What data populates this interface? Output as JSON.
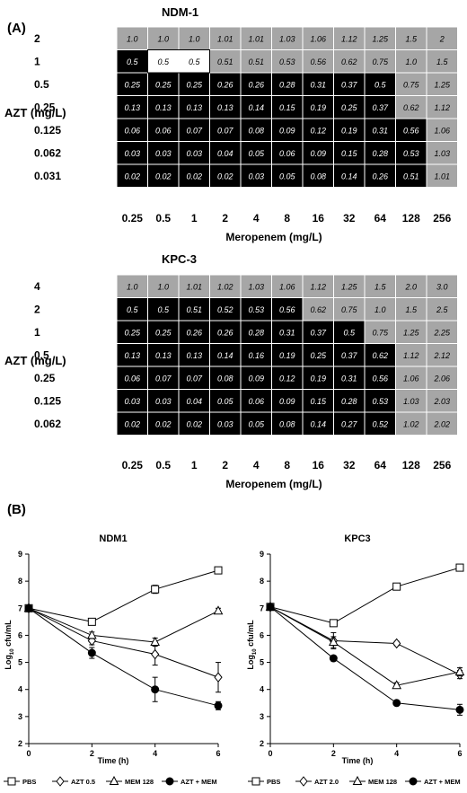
{
  "panel_a": {
    "label": "(A)",
    "grids": [
      {
        "title": "NDM-1",
        "ylabel": "AZT (mg/L)",
        "xlabel": "Meropenem (mg/L)",
        "rows": [
          "2",
          "1",
          "0.5",
          "0.25",
          "0.125",
          "0.062",
          "0.031"
        ],
        "cols": [
          "0.25",
          "0.5",
          "1",
          "2",
          "4",
          "8",
          "16",
          "32",
          "64",
          "128",
          "256"
        ],
        "values": [
          [
            "1.0",
            "1.0",
            "1.0",
            "1.01",
            "1.01",
            "1.03",
            "1.06",
            "1.12",
            "1.25",
            "1.5",
            "2"
          ],
          [
            "0.5",
            "0.5",
            "0.5",
            "0.51",
            "0.51",
            "0.53",
            "0.56",
            "0.62",
            "0.75",
            "1.0",
            "1.5"
          ],
          [
            "0.25",
            "0.25",
            "0.25",
            "0.26",
            "0.26",
            "0.28",
            "0.31",
            "0.37",
            "0.5",
            "0.75",
            "1.25"
          ],
          [
            "0.13",
            "0.13",
            "0.13",
            "0.13",
            "0.14",
            "0.15",
            "0.19",
            "0.25",
            "0.37",
            "0.62",
            "1.12"
          ],
          [
            "0.06",
            "0.06",
            "0.07",
            "0.07",
            "0.08",
            "0.09",
            "0.12",
            "0.19",
            "0.31",
            "0.56",
            "1.06"
          ],
          [
            "0.03",
            "0.03",
            "0.03",
            "0.04",
            "0.05",
            "0.06",
            "0.09",
            "0.15",
            "0.28",
            "0.53",
            "1.03"
          ],
          [
            "0.02",
            "0.02",
            "0.02",
            "0.02",
            "0.03",
            "0.05",
            "0.08",
            "0.14",
            "0.26",
            "0.51",
            "1.01"
          ]
        ],
        "shading": [
          [
            "g",
            "g",
            "g",
            "g",
            "g",
            "g",
            "g",
            "g",
            "g",
            "g",
            "g"
          ],
          [
            "k",
            "w",
            "w",
            "g",
            "g",
            "g",
            "g",
            "g",
            "g",
            "g",
            "g"
          ],
          [
            "k",
            "k",
            "k",
            "k",
            "k",
            "k",
            "k",
            "k",
            "k",
            "g",
            "g"
          ],
          [
            "k",
            "k",
            "k",
            "k",
            "k",
            "k",
            "k",
            "k",
            "k",
            "g",
            "g"
          ],
          [
            "k",
            "k",
            "k",
            "k",
            "k",
            "k",
            "k",
            "k",
            "k",
            "k",
            "g"
          ],
          [
            "k",
            "k",
            "k",
            "k",
            "k",
            "k",
            "k",
            "k",
            "k",
            "k",
            "g"
          ],
          [
            "k",
            "k",
            "k",
            "k",
            "k",
            "k",
            "k",
            "k",
            "k",
            "k",
            "g"
          ]
        ]
      },
      {
        "title": "KPC-3",
        "ylabel": "AZT (mg/L)",
        "xlabel": "Meropenem (mg/L)",
        "rows": [
          "4",
          "2",
          "1",
          "0.5",
          "0.25",
          "0.125",
          "0.062"
        ],
        "cols": [
          "0.25",
          "0.5",
          "1",
          "2",
          "4",
          "8",
          "16",
          "32",
          "64",
          "128",
          "256"
        ],
        "values": [
          [
            "1.0",
            "1.0",
            "1.01",
            "1.02",
            "1.03",
            "1.06",
            "1.12",
            "1.25",
            "1.5",
            "2.0",
            "3.0"
          ],
          [
            "0.5",
            "0.5",
            "0.51",
            "0.52",
            "0.53",
            "0.56",
            "0.62",
            "0.75",
            "1.0",
            "1.5",
            "2.5"
          ],
          [
            "0.25",
            "0.25",
            "0.26",
            "0.26",
            "0.28",
            "0.31",
            "0.37",
            "0.5",
            "0.75",
            "1.25",
            "2.25"
          ],
          [
            "0.13",
            "0.13",
            "0.13",
            "0.14",
            "0.16",
            "0.19",
            "0.25",
            "0.37",
            "0.62",
            "1.12",
            "2.12"
          ],
          [
            "0.06",
            "0.07",
            "0.07",
            "0.08",
            "0.09",
            "0.12",
            "0.19",
            "0.31",
            "0.56",
            "1.06",
            "2.06"
          ],
          [
            "0.03",
            "0.03",
            "0.04",
            "0.05",
            "0.06",
            "0.09",
            "0.15",
            "0.28",
            "0.53",
            "1.03",
            "2.03"
          ],
          [
            "0.02",
            "0.02",
            "0.02",
            "0.03",
            "0.05",
            "0.08",
            "0.14",
            "0.27",
            "0.52",
            "1.02",
            "2.02"
          ]
        ],
        "shading": [
          [
            "g",
            "g",
            "g",
            "g",
            "g",
            "g",
            "g",
            "g",
            "g",
            "g",
            "g"
          ],
          [
            "k",
            "k",
            "k",
            "k",
            "k",
            "k",
            "g",
            "g",
            "g",
            "g",
            "g"
          ],
          [
            "k",
            "k",
            "k",
            "k",
            "k",
            "k",
            "k",
            "k",
            "g",
            "g",
            "g"
          ],
          [
            "k",
            "k",
            "k",
            "k",
            "k",
            "k",
            "k",
            "k",
            "k",
            "g",
            "g"
          ],
          [
            "k",
            "k",
            "k",
            "k",
            "k",
            "k",
            "k",
            "k",
            "k",
            "g",
            "g"
          ],
          [
            "k",
            "k",
            "k",
            "k",
            "k",
            "k",
            "k",
            "k",
            "k",
            "g",
            "g"
          ],
          [
            "k",
            "k",
            "k",
            "k",
            "k",
            "k",
            "k",
            "k",
            "k",
            "g",
            "g"
          ]
        ]
      }
    ],
    "colors": {
      "g": "#a6a6a6",
      "k": "#000000",
      "w": "#ffffff",
      "grid_line": "#ffffff"
    }
  },
  "panel_b": {
    "label": "(B)",
    "charts": [
      {
        "type": "line",
        "title": "NDM1",
        "xlabel": "Time (h)",
        "ylabel_main": "Log",
        "ylabel_sub": "10",
        "ylabel_tail": " cfu/mL",
        "x": [
          0,
          2,
          4,
          6
        ],
        "xlim": [
          0,
          6
        ],
        "ylim": [
          2,
          9
        ],
        "xticks": [
          "0",
          "2",
          "4",
          "6"
        ],
        "yticks": [
          "2",
          "3",
          "4",
          "5",
          "6",
          "7",
          "8",
          "9"
        ],
        "series": [
          {
            "name": "PBS",
            "marker": "square-open",
            "values": [
              7.0,
              6.5,
              7.7,
              8.4
            ],
            "errors": [
              0,
              0.1,
              0.15,
              0.1
            ]
          },
          {
            "name": "AZT 0.5",
            "marker": "diamond-open",
            "values": [
              7.0,
              5.8,
              5.3,
              4.45
            ],
            "errors": [
              0,
              0.15,
              0.4,
              0.55
            ]
          },
          {
            "name": "MEM 128",
            "marker": "triangle-open",
            "values": [
              7.0,
              6.0,
              5.75,
              6.9
            ],
            "errors": [
              0,
              0.12,
              0.15,
              0.1
            ]
          },
          {
            "name": "AZT + MEM",
            "marker": "circle-filled",
            "values": [
              7.0,
              5.35,
              4.0,
              3.4
            ],
            "errors": [
              0,
              0.2,
              0.45,
              0.15
            ]
          }
        ]
      },
      {
        "type": "line",
        "title": "KPC3",
        "xlabel": "Time (h)",
        "ylabel_main": "Log",
        "ylabel_sub": "10",
        "ylabel_tail": " cfu/mL",
        "x": [
          0,
          2,
          4,
          6
        ],
        "xlim": [
          0,
          6
        ],
        "ylim": [
          2,
          9
        ],
        "xticks": [
          "0",
          "2",
          "4",
          "6"
        ],
        "yticks": [
          "2",
          "3",
          "4",
          "5",
          "6",
          "7",
          "8",
          "9"
        ],
        "series": [
          {
            "name": "PBS",
            "marker": "square-open",
            "values": [
              7.05,
              6.45,
              7.8,
              8.5
            ],
            "errors": [
              0,
              0.1,
              0.1,
              0.1
            ]
          },
          {
            "name": "AZT 2.0",
            "marker": "diamond-open",
            "values": [
              7.05,
              5.8,
              5.7,
              4.55
            ],
            "errors": [
              0,
              0.3,
              0.08,
              0.15
            ]
          },
          {
            "name": "MEM 128",
            "marker": "triangle-open",
            "values": [
              7.05,
              5.75,
              4.15,
              4.65
            ],
            "errors": [
              0,
              0.2,
              0.1,
              0.15
            ]
          },
          {
            "name": "AZT + MEM",
            "marker": "circle-filled",
            "values": [
              7.05,
              5.15,
              3.5,
              3.25
            ],
            "errors": [
              0,
              0.1,
              0.05,
              0.2
            ]
          }
        ]
      }
    ]
  }
}
